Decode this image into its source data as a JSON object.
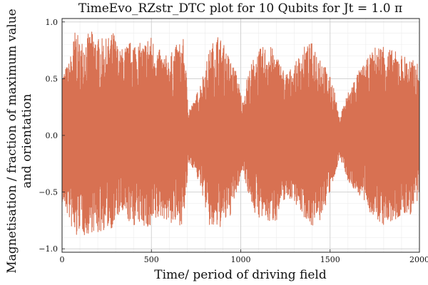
{
  "chart_data": {
    "type": "line",
    "title": "TimeEvo_RZstr_DTC plot for 10 Qubits for Jt = 1.0 π",
    "xlabel": "Time/ period of driving field",
    "ylabel_lines": [
      "Magnetisation / fraction of maximum value",
      "and orientation"
    ],
    "xlim": [
      0,
      2000
    ],
    "ylim": [
      -1.03,
      1.03
    ],
    "x_ticks": [
      0,
      500,
      1000,
      1500,
      2000
    ],
    "x_tick_labels": [
      "0",
      "500",
      "1000",
      "1500",
      "2000"
    ],
    "y_ticks": [
      -1.0,
      -0.5,
      0.0,
      0.5,
      1.0
    ],
    "y_tick_labels": [
      "−1.0",
      "−0.5",
      "0.0",
      "0.5",
      "1.0"
    ],
    "grid": true,
    "legend": "none",
    "series_color": "#d87152",
    "series": [
      {
        "x_range": [
          0,
          2000
        ],
        "envelope": {
          "x": [
            0,
            40,
            75,
            100,
            130,
            170,
            200,
            250,
            290,
            320,
            360,
            400,
            450,
            490,
            520,
            560,
            600,
            640,
            680,
            710,
            740,
            790,
            830,
            870,
            900,
            940,
            980,
            1010,
            1040,
            1080,
            1120,
            1160,
            1200,
            1250,
            1300,
            1350,
            1400,
            1440,
            1480,
            1520,
            1550,
            1580,
            1610,
            1650,
            1700,
            1750,
            1800,
            1850,
            1900,
            1950,
            2000
          ],
          "upper": [
            0.55,
            0.65,
            0.95,
            0.82,
            0.88,
            0.92,
            0.86,
            0.85,
            0.92,
            0.75,
            0.8,
            0.85,
            0.8,
            0.9,
            0.82,
            0.72,
            0.7,
            0.8,
            0.85,
            0.25,
            0.3,
            0.55,
            0.78,
            0.9,
            0.82,
            0.68,
            0.55,
            0.3,
            0.55,
            0.72,
            0.78,
            0.8,
            0.72,
            0.55,
            0.62,
            0.78,
            0.82,
            0.75,
            0.58,
            0.45,
            0.15,
            0.3,
            0.42,
            0.55,
            0.65,
            0.78,
            0.82,
            0.75,
            0.72,
            0.68,
            0.62
          ],
          "lower": [
            -0.6,
            -0.75,
            -0.95,
            -0.82,
            -0.9,
            -0.85,
            -0.88,
            -0.82,
            -0.82,
            -0.7,
            -0.75,
            -0.8,
            -0.78,
            -0.88,
            -0.78,
            -0.72,
            -0.78,
            -0.8,
            -0.78,
            -0.25,
            -0.3,
            -0.55,
            -0.85,
            -0.83,
            -0.8,
            -0.72,
            -0.5,
            -0.3,
            -0.5,
            -0.7,
            -0.75,
            -0.78,
            -0.75,
            -0.55,
            -0.58,
            -0.72,
            -0.8,
            -0.78,
            -0.6,
            -0.42,
            -0.2,
            -0.3,
            -0.45,
            -0.5,
            -0.62,
            -0.75,
            -0.8,
            -0.78,
            -0.72,
            -0.7,
            -0.6
          ]
        }
      }
    ]
  }
}
